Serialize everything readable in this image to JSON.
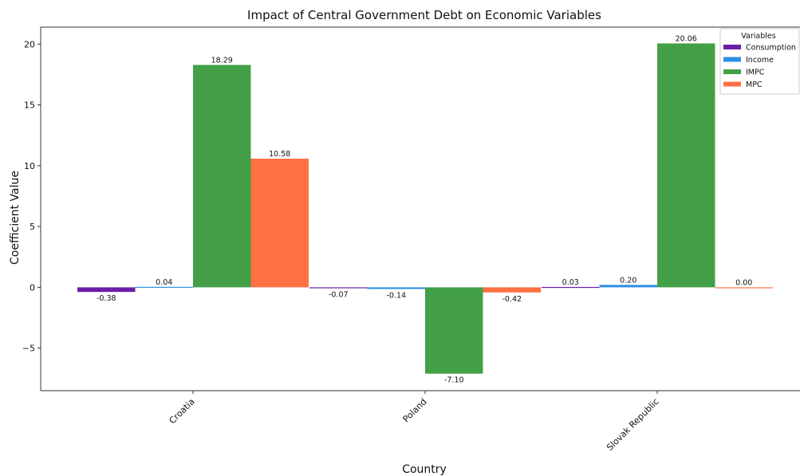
{
  "chart_data": {
    "type": "bar",
    "title": "Impact of Central Government Debt on Economic Variables",
    "xlabel": "Country",
    "ylabel": "Coefficient Value",
    "categories": [
      "Croatia",
      "Poland",
      "Slovak Republic"
    ],
    "series": [
      {
        "name": "Consumption",
        "color": "#6a1fa6",
        "values": [
          -0.38,
          -0.07,
          0.03
        ],
        "labels": [
          "-0.38",
          "-0.07",
          "0.03"
        ]
      },
      {
        "name": "Income",
        "color": "#2e8fe6",
        "values": [
          0.04,
          -0.14,
          0.2
        ],
        "labels": [
          "0.04",
          "-0.14",
          "0.20"
        ]
      },
      {
        "name": "IMPC",
        "color": "#44a046",
        "values": [
          18.29,
          -7.1,
          20.06
        ],
        "labels": [
          "18.29",
          "-7.10",
          "20.06"
        ]
      },
      {
        "name": "MPC",
        "color": "#ff7043",
        "values": [
          10.58,
          -0.42,
          0.0
        ],
        "labels": [
          "10.58",
          "-0.42",
          "0.00"
        ]
      }
    ],
    "yticks": [
      -5,
      0,
      5,
      10,
      15,
      20
    ],
    "ytick_labels": [
      "−5",
      "0",
      "5",
      "10",
      "15",
      "20"
    ],
    "ylim": [
      -8.5,
      21.4
    ],
    "grid": false,
    "legend": {
      "title": "Variables",
      "position": "top-right"
    }
  }
}
